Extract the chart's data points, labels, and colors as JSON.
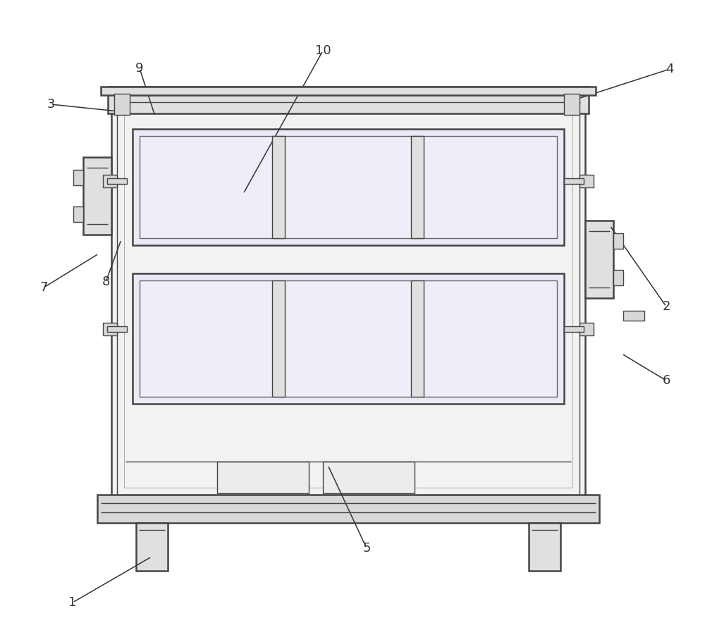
{
  "bg_color": "#ffffff",
  "lc": "#444444",
  "lc_thin": "#666666",
  "fill_body": "#f2f2f2",
  "fill_tray": "#ede8f5",
  "fill_tray_inner": "#f0ecf8",
  "fill_gray": "#e0e0e0",
  "fill_base": "#d8d8d8",
  "fig_width": 10.0,
  "fig_height": 8.94,
  "lw_main": 1.8,
  "lw_thin": 1.0,
  "lw_ann": 1.1
}
